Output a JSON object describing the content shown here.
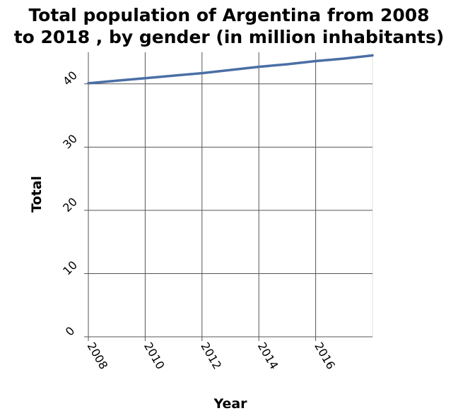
{
  "chart_data": {
    "type": "line",
    "title_lines": [
      "Total population of Argentina from 2008",
      "to 2018 , by gender (in million inhabitants)"
    ],
    "xlabel": "Year",
    "ylabel": "Total",
    "xlim": [
      2008,
      2018
    ],
    "ylim": [
      0,
      45
    ],
    "x_ticks": [
      2008,
      2010,
      2012,
      2014,
      2016
    ],
    "y_ticks": [
      0,
      10,
      20,
      30,
      40
    ],
    "grid": true,
    "series": [
      {
        "color": "#4a6fa5",
        "x": [
          2008,
          2009,
          2010,
          2011,
          2012,
          2013,
          2014,
          2015,
          2016,
          2017,
          2018
        ],
        "y": [
          40.1,
          40.5,
          40.9,
          41.3,
          41.7,
          42.2,
          42.7,
          43.1,
          43.6,
          44.0,
          44.5
        ]
      }
    ]
  }
}
